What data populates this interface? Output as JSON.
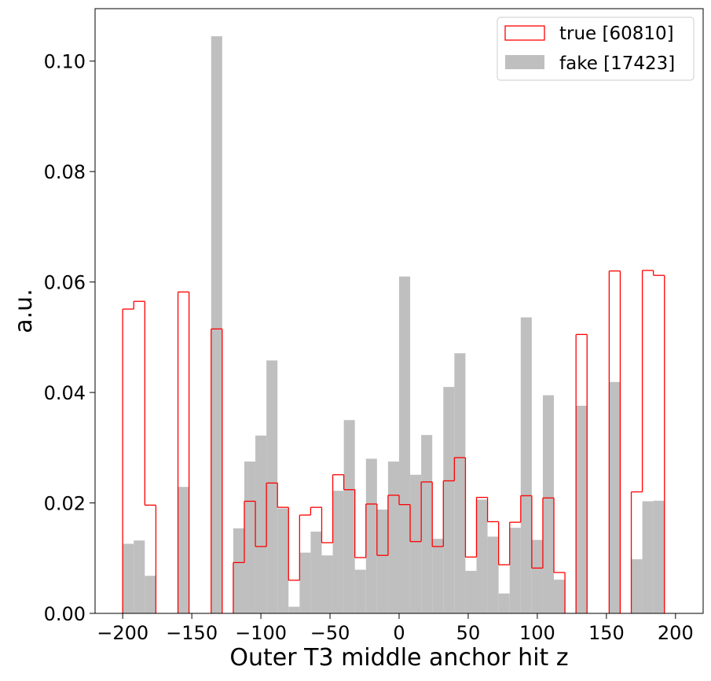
{
  "chart_data": {
    "type": "bar",
    "title": "",
    "xlabel": "Outer T3 middle anchor hit z",
    "ylabel": "a.u.",
    "xlim": [
      -220,
      220
    ],
    "ylim": [
      0,
      0.1095
    ],
    "bin_start": -200,
    "bin_width": 8,
    "x_ticks": [
      -200,
      -150,
      -100,
      -50,
      0,
      50,
      100,
      150,
      200
    ],
    "x_tick_labels": [
      "−200",
      "−150",
      "−100",
      "−50",
      "0",
      "50",
      "100",
      "150",
      "200"
    ],
    "y_ticks": [
      0,
      0.02,
      0.04,
      0.06,
      0.08,
      0.1
    ],
    "y_tick_labels": [
      "0.00",
      "0.02",
      "0.04",
      "0.06",
      "0.08",
      "0.10"
    ],
    "grid": false,
    "legend_position": "top-right",
    "series": [
      {
        "name": "true [60810]",
        "style": "step",
        "color": "#ff0000",
        "values": [
          0.0551,
          0.0565,
          0.0196,
          0,
          0,
          0.0582,
          0,
          0,
          0.0515,
          0,
          0.0092,
          0.0203,
          0.0121,
          0.0236,
          0.0192,
          0.006,
          0.0178,
          0.0192,
          0.0128,
          0.0251,
          0.0224,
          0.0101,
          0.0198,
          0.0105,
          0.0214,
          0.0197,
          0.013,
          0.0238,
          0.0121,
          0.024,
          0.0282,
          0.0102,
          0.021,
          0.0166,
          0.0088,
          0.0165,
          0.0213,
          0.0082,
          0.0209,
          0.0074,
          0,
          0.0505,
          0,
          0,
          0.062,
          0,
          0.022,
          0.0621,
          0.0612,
          0
        ]
      },
      {
        "name": "fake [17423]",
        "style": "filled",
        "color": "#bfbfbf",
        "values": [
          0.0126,
          0.0132,
          0.0068,
          0,
          0,
          0.0229,
          0,
          0,
          0.1045,
          0,
          0.0154,
          0.0275,
          0.0322,
          0.0458,
          0.019,
          0.0012,
          0.011,
          0.0148,
          0.0105,
          0.0222,
          0.035,
          0.0079,
          0.028,
          0.0188,
          0.0275,
          0.061,
          0.0251,
          0.0323,
          0.0135,
          0.041,
          0.0471,
          0.0077,
          0.0206,
          0.0139,
          0.0036,
          0.0155,
          0.0536,
          0.0133,
          0.0395,
          0.0061,
          0,
          0.0376,
          0,
          0,
          0.0419,
          0,
          0.0098,
          0.0203,
          0.0204,
          0
        ]
      }
    ]
  }
}
